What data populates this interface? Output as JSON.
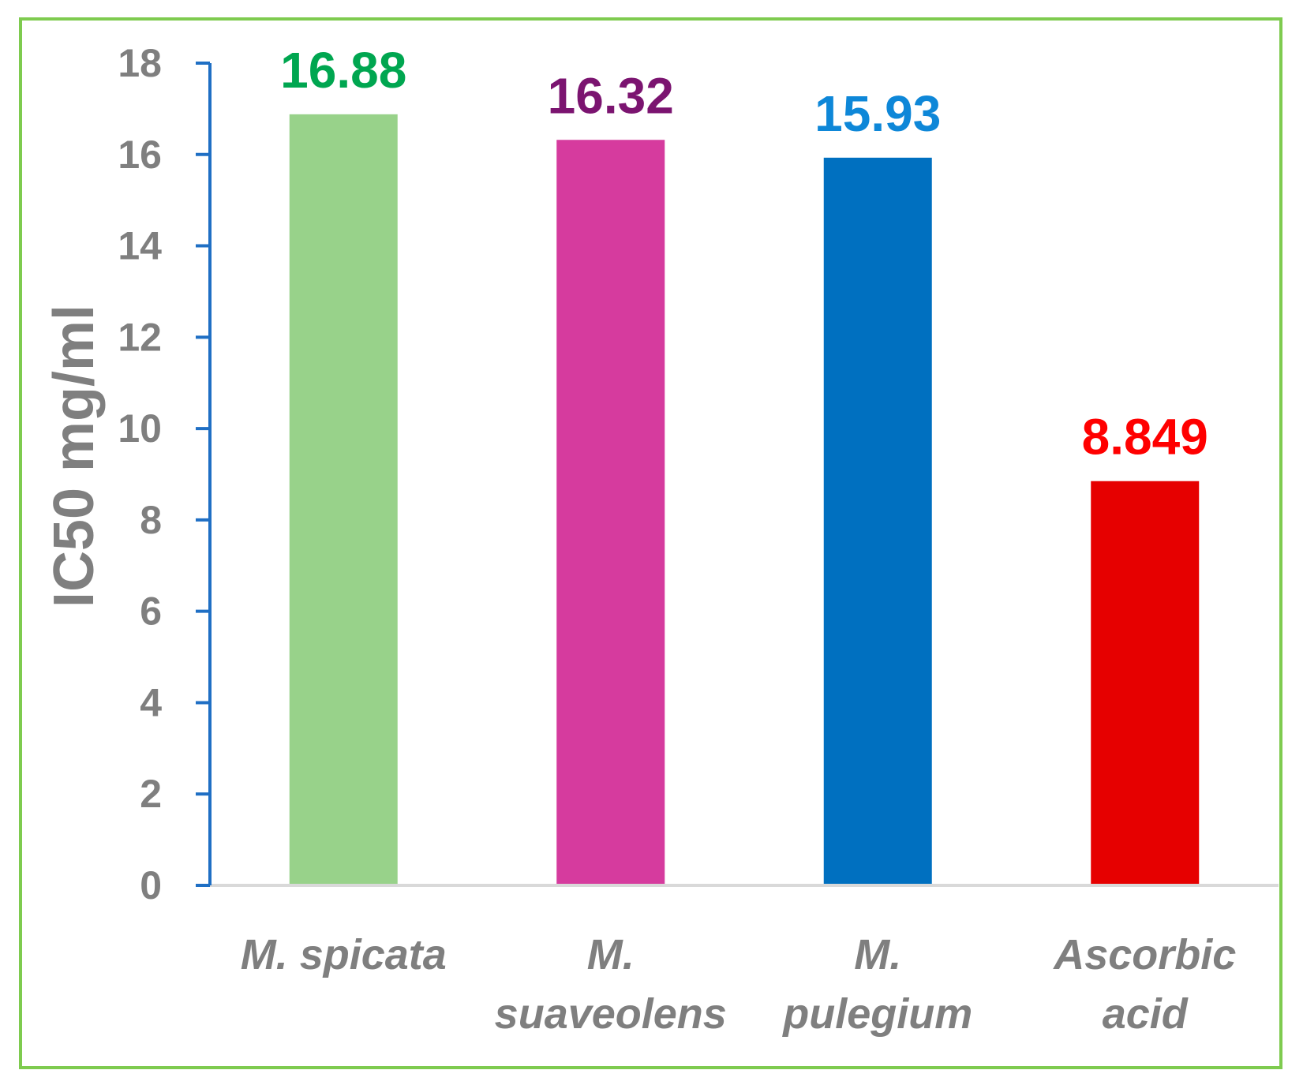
{
  "chart_data": {
    "type": "bar",
    "title": "",
    "xlabel": "",
    "ylabel": "IC50 mg/ml",
    "ylim": [
      0,
      18
    ],
    "yticks": [
      "0",
      "2",
      "4",
      "6",
      "8",
      "10",
      "12",
      "14",
      "16",
      "18"
    ],
    "categories": [
      [
        "M. spicata"
      ],
      [
        "M.",
        "suaveolens"
      ],
      [
        "M.",
        "pulegium"
      ],
      [
        "Ascorbic",
        "acid"
      ]
    ],
    "values": [
      16.88,
      16.32,
      15.93,
      8.849
    ],
    "data_labels": [
      "16.88",
      "16.32",
      "15.93",
      "8.849"
    ],
    "bar_colors": [
      "#98d28a",
      "#d63b9e",
      "#0070c0",
      "#e60000"
    ],
    "label_colors": [
      "#00a650",
      "#7b1470",
      "#0e87d8",
      "#ff0000"
    ],
    "axis_color": "#1f6fc4",
    "border_color": "#7ecb4f",
    "grid": false,
    "legend": "none"
  }
}
